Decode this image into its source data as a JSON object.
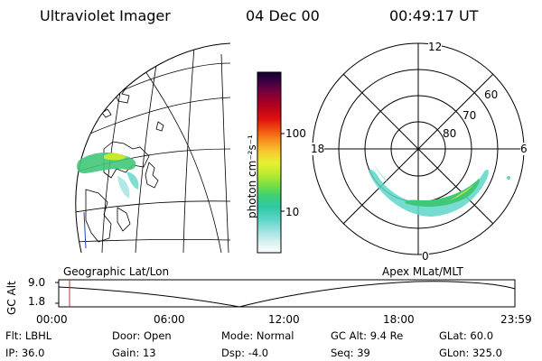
{
  "header": {
    "instrument": "Ultraviolet Imager",
    "date": "04 Dec 00",
    "time": "00:49:17 UT"
  },
  "colorbar": {
    "unit_label": "photon cm⁻²s⁻¹",
    "ticks": [
      "100",
      "10"
    ],
    "colors": [
      "#ffffff",
      "#d8f0f0",
      "#9fe3e0",
      "#5fd6c8",
      "#30c8a8",
      "#40d070",
      "#80e040",
      "#c0ec30",
      "#e8f030",
      "#f8c830",
      "#f89020",
      "#f05010",
      "#e01010",
      "#b00020",
      "#700040",
      "#300040",
      "#100030"
    ]
  },
  "polar_plot": {
    "mlt_labels": {
      "top": "12",
      "left": "18",
      "right": "6",
      "bottom": "0"
    },
    "lat_labels": [
      "60",
      "70",
      "80"
    ]
  },
  "timeline": {
    "left_label": "Geographic Lat/Lon",
    "right_label": "Apex MLat/MLT",
    "y_axis_title": "GC Alt",
    "y_ticks": [
      "9.0",
      "1.8"
    ],
    "x_ticks": [
      "00:00",
      "06:00",
      "12:00",
      "18:00",
      "23:59"
    ],
    "marker_color": "#c03030"
  },
  "info": {
    "filter_label": "Flt:",
    "filter_value": "LBHL",
    "door_label": "Door:",
    "door_value": "Open",
    "mode_label": "Mode:",
    "mode_value": "Normal",
    "gcalt_label": "GC Alt:",
    "gcalt_value": "9.4 Re",
    "glat_label": "GLat:",
    "glat_value": "60.0",
    "ip_label": "IP:",
    "ip_value": "36.0",
    "gain_label": "Gain:",
    "gain_value": "13",
    "dsp_label": "Dsp:",
    "dsp_value": "-4.0",
    "seq_label": "Seq:",
    "seq_value": "39",
    "glon_label": "GLon:",
    "glon_value": "325.0"
  }
}
